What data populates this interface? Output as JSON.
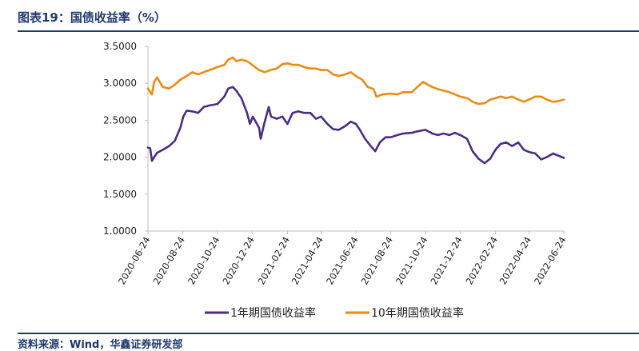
{
  "header": {
    "title": "图表19：国债收益率（%）"
  },
  "footer": {
    "source": "资料来源：Wind，华鑫证券研发部"
  },
  "colors": {
    "series_1y": "#4b2d83",
    "series_10y": "#ee8a12",
    "title": "#1f3a6e",
    "axis": "#bfbfbf"
  },
  "chart_data": {
    "type": "line",
    "title": "",
    "xlabel": "",
    "ylabel": "",
    "ylim": [
      1.0,
      3.5
    ],
    "y_ticks": [
      "1.0000",
      "1.5000",
      "2.0000",
      "2.5000",
      "3.0000",
      "3.5000"
    ],
    "x_ticks": [
      "2020-06-24",
      "2020-08-24",
      "2020-10-24",
      "2020-12-24",
      "2021-02-24",
      "2021-04-24",
      "2021-06-24",
      "2021-08-24",
      "2021-10-24",
      "2021-12-24",
      "2022-02-24",
      "2022-04-24",
      "2022-06-24"
    ],
    "legend_position": "bottom",
    "grid": false,
    "series": [
      {
        "name": "1年期国债收益率",
        "color": "#4b2d83",
        "points": [
          [
            "2020-06-24",
            2.13
          ],
          [
            "2020-06-28",
            2.12
          ],
          [
            "2020-07-01",
            1.95
          ],
          [
            "2020-07-05",
            2.0
          ],
          [
            "2020-07-10",
            2.06
          ],
          [
            "2020-07-20",
            2.1
          ],
          [
            "2020-07-31",
            2.15
          ],
          [
            "2020-08-10",
            2.22
          ],
          [
            "2020-08-20",
            2.4
          ],
          [
            "2020-08-25",
            2.55
          ],
          [
            "2020-08-31",
            2.63
          ],
          [
            "2020-09-10",
            2.62
          ],
          [
            "2020-09-20",
            2.6
          ],
          [
            "2020-09-30",
            2.68
          ],
          [
            "2020-10-10",
            2.7
          ],
          [
            "2020-10-24",
            2.72
          ],
          [
            "2020-11-05",
            2.82
          ],
          [
            "2020-11-12",
            2.93
          ],
          [
            "2020-11-20",
            2.95
          ],
          [
            "2020-11-26",
            2.9
          ],
          [
            "2020-12-05",
            2.8
          ],
          [
            "2020-12-15",
            2.6
          ],
          [
            "2020-12-20",
            2.45
          ],
          [
            "2020-12-25",
            2.55
          ],
          [
            "2021-01-05",
            2.4
          ],
          [
            "2021-01-08",
            2.25
          ],
          [
            "2021-01-14",
            2.45
          ],
          [
            "2021-01-22",
            2.68
          ],
          [
            "2021-01-26",
            2.55
          ],
          [
            "2021-02-05",
            2.52
          ],
          [
            "2021-02-15",
            2.55
          ],
          [
            "2021-02-24",
            2.45
          ],
          [
            "2021-03-05",
            2.6
          ],
          [
            "2021-03-15",
            2.62
          ],
          [
            "2021-03-25",
            2.6
          ],
          [
            "2021-04-05",
            2.6
          ],
          [
            "2021-04-15",
            2.52
          ],
          [
            "2021-04-24",
            2.55
          ],
          [
            "2021-05-05",
            2.45
          ],
          [
            "2021-05-15",
            2.38
          ],
          [
            "2021-05-25",
            2.37
          ],
          [
            "2021-06-05",
            2.42
          ],
          [
            "2021-06-15",
            2.48
          ],
          [
            "2021-06-24",
            2.45
          ],
          [
            "2021-07-01",
            2.37
          ],
          [
            "2021-07-10",
            2.25
          ],
          [
            "2021-07-20",
            2.15
          ],
          [
            "2021-07-28",
            2.08
          ],
          [
            "2021-08-05",
            2.2
          ],
          [
            "2021-08-15",
            2.27
          ],
          [
            "2021-08-24",
            2.27
          ],
          [
            "2021-09-05",
            2.3
          ],
          [
            "2021-09-15",
            2.32
          ],
          [
            "2021-09-30",
            2.33
          ],
          [
            "2021-10-10",
            2.35
          ],
          [
            "2021-10-24",
            2.37
          ],
          [
            "2021-11-05",
            2.32
          ],
          [
            "2021-11-15",
            2.3
          ],
          [
            "2021-11-25",
            2.32
          ],
          [
            "2021-12-05",
            2.3
          ],
          [
            "2021-12-15",
            2.33
          ],
          [
            "2021-12-24",
            2.3
          ],
          [
            "2022-01-05",
            2.25
          ],
          [
            "2022-01-15",
            2.08
          ],
          [
            "2022-01-25",
            1.98
          ],
          [
            "2022-02-05",
            1.92
          ],
          [
            "2022-02-15",
            1.98
          ],
          [
            "2022-02-24",
            2.1
          ],
          [
            "2022-03-05",
            2.18
          ],
          [
            "2022-03-15",
            2.2
          ],
          [
            "2022-03-25",
            2.15
          ],
          [
            "2022-04-05",
            2.2
          ],
          [
            "2022-04-15",
            2.1
          ],
          [
            "2022-04-24",
            2.07
          ],
          [
            "2022-05-05",
            2.05
          ],
          [
            "2022-05-15",
            1.97
          ],
          [
            "2022-05-25",
            2.0
          ],
          [
            "2022-06-05",
            2.05
          ],
          [
            "2022-06-15",
            2.02
          ],
          [
            "2022-06-24",
            1.99
          ]
        ]
      },
      {
        "name": "10年期国债收益率",
        "color": "#ee8a12",
        "points": [
          [
            "2020-06-24",
            2.93
          ],
          [
            "2020-06-28",
            2.88
          ],
          [
            "2020-07-01",
            2.85
          ],
          [
            "2020-07-05",
            3.02
          ],
          [
            "2020-07-10",
            3.08
          ],
          [
            "2020-07-20",
            2.95
          ],
          [
            "2020-07-31",
            2.93
          ],
          [
            "2020-08-10",
            2.98
          ],
          [
            "2020-08-20",
            3.05
          ],
          [
            "2020-08-31",
            3.1
          ],
          [
            "2020-09-10",
            3.15
          ],
          [
            "2020-09-20",
            3.12
          ],
          [
            "2020-09-30",
            3.15
          ],
          [
            "2020-10-10",
            3.18
          ],
          [
            "2020-10-24",
            3.22
          ],
          [
            "2020-11-05",
            3.25
          ],
          [
            "2020-11-12",
            3.32
          ],
          [
            "2020-11-20",
            3.35
          ],
          [
            "2020-11-26",
            3.3
          ],
          [
            "2020-12-05",
            3.32
          ],
          [
            "2020-12-15",
            3.3
          ],
          [
            "2020-12-24",
            3.25
          ],
          [
            "2021-01-05",
            3.18
          ],
          [
            "2021-01-15",
            3.15
          ],
          [
            "2021-01-25",
            3.18
          ],
          [
            "2021-02-05",
            3.2
          ],
          [
            "2021-02-15",
            3.26
          ],
          [
            "2021-02-24",
            3.27
          ],
          [
            "2021-03-05",
            3.25
          ],
          [
            "2021-03-15",
            3.25
          ],
          [
            "2021-03-25",
            3.22
          ],
          [
            "2021-04-05",
            3.2
          ],
          [
            "2021-04-15",
            3.2
          ],
          [
            "2021-04-24",
            3.18
          ],
          [
            "2021-05-05",
            3.18
          ],
          [
            "2021-05-15",
            3.12
          ],
          [
            "2021-05-25",
            3.1
          ],
          [
            "2021-06-05",
            3.12
          ],
          [
            "2021-06-15",
            3.15
          ],
          [
            "2021-06-24",
            3.1
          ],
          [
            "2021-07-05",
            3.05
          ],
          [
            "2021-07-15",
            2.95
          ],
          [
            "2021-07-25",
            2.92
          ],
          [
            "2021-07-30",
            2.82
          ],
          [
            "2021-08-10",
            2.85
          ],
          [
            "2021-08-24",
            2.86
          ],
          [
            "2021-09-05",
            2.85
          ],
          [
            "2021-09-15",
            2.88
          ],
          [
            "2021-09-30",
            2.88
          ],
          [
            "2021-10-10",
            2.95
          ],
          [
            "2021-10-20",
            3.02
          ],
          [
            "2021-10-24",
            3.0
          ],
          [
            "2021-11-05",
            2.95
          ],
          [
            "2021-11-15",
            2.92
          ],
          [
            "2021-11-25",
            2.9
          ],
          [
            "2021-12-05",
            2.88
          ],
          [
            "2021-12-15",
            2.85
          ],
          [
            "2021-12-24",
            2.82
          ],
          [
            "2022-01-05",
            2.8
          ],
          [
            "2022-01-15",
            2.75
          ],
          [
            "2022-01-25",
            2.72
          ],
          [
            "2022-02-05",
            2.73
          ],
          [
            "2022-02-15",
            2.78
          ],
          [
            "2022-02-24",
            2.8
          ],
          [
            "2022-03-05",
            2.82
          ],
          [
            "2022-03-15",
            2.8
          ],
          [
            "2022-03-25",
            2.82
          ],
          [
            "2022-04-05",
            2.78
          ],
          [
            "2022-04-15",
            2.75
          ],
          [
            "2022-04-24",
            2.78
          ],
          [
            "2022-05-05",
            2.82
          ],
          [
            "2022-05-15",
            2.82
          ],
          [
            "2022-05-25",
            2.78
          ],
          [
            "2022-06-05",
            2.75
          ],
          [
            "2022-06-15",
            2.76
          ],
          [
            "2022-06-24",
            2.78
          ]
        ]
      }
    ]
  }
}
